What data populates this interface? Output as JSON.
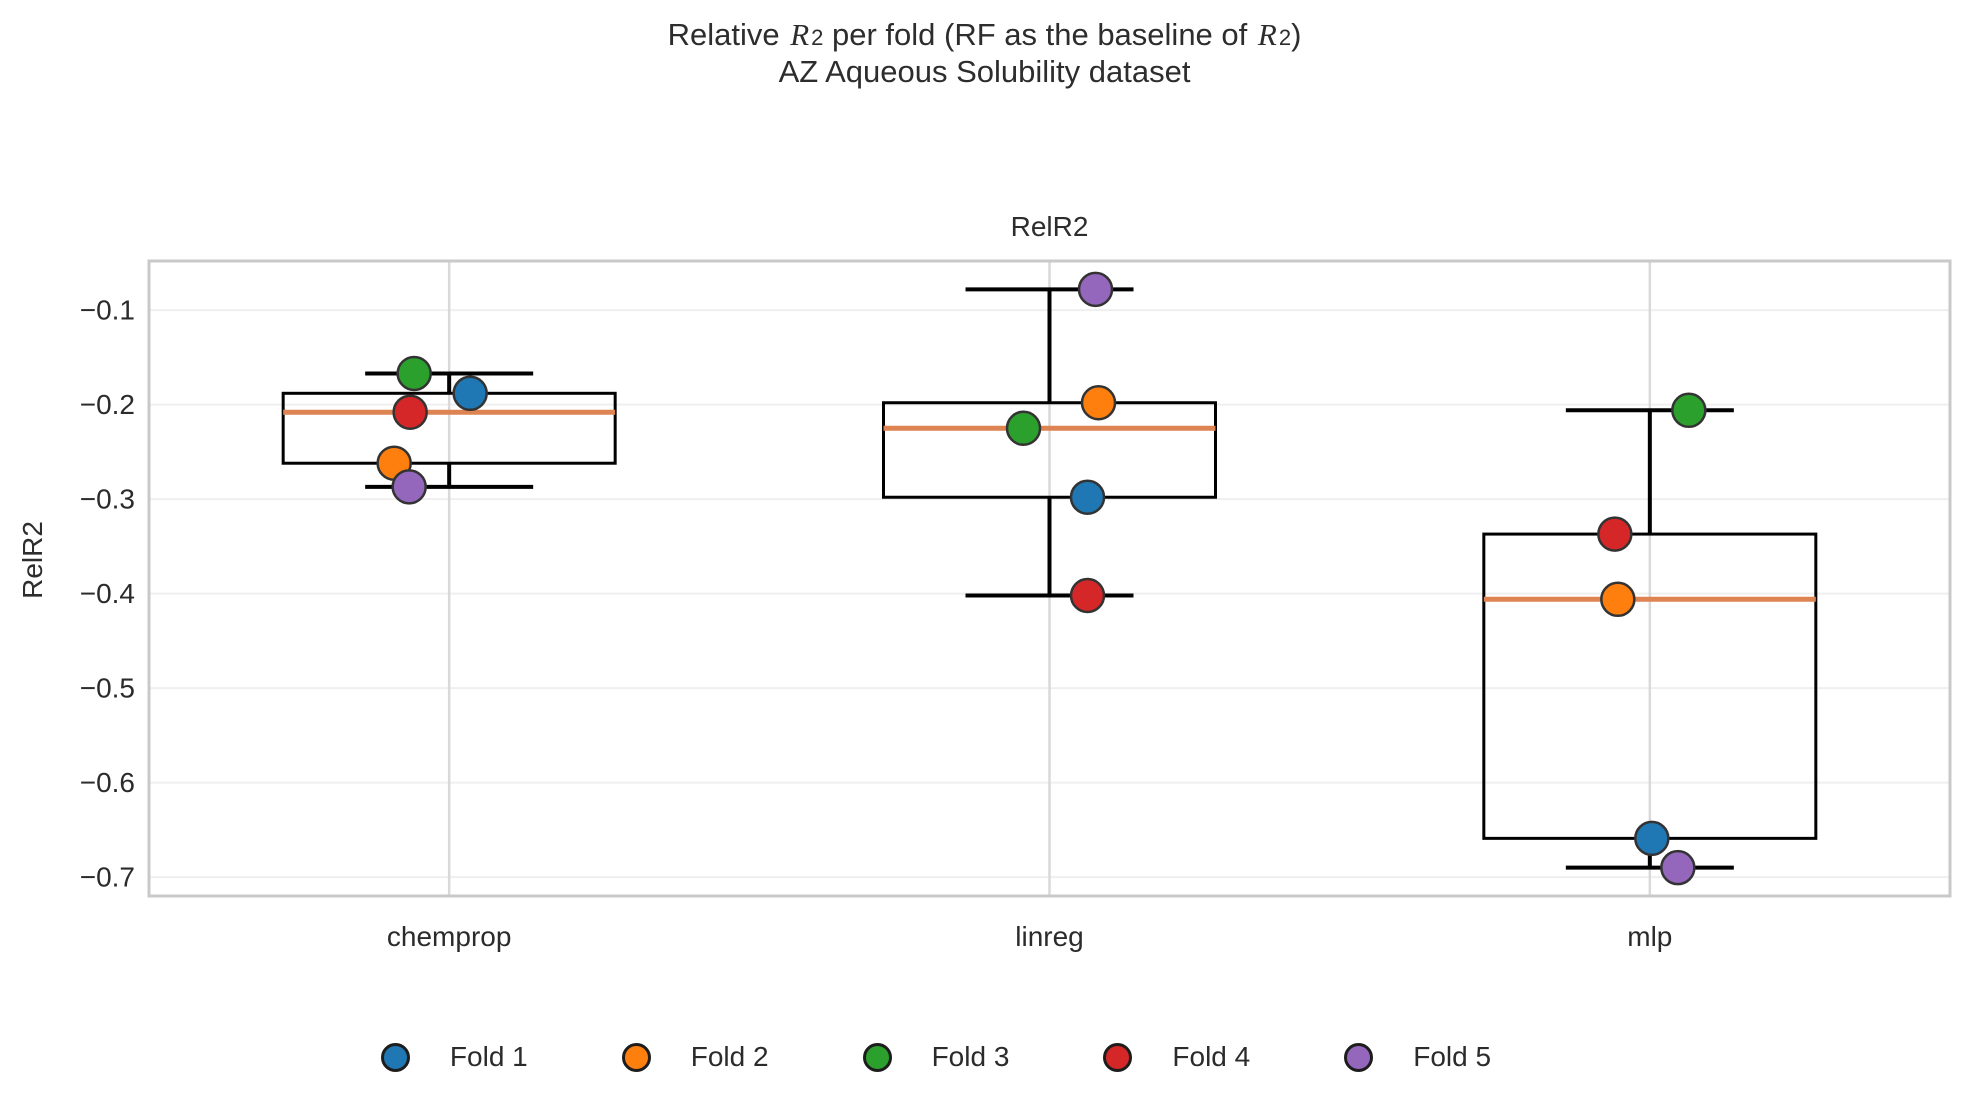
{
  "figure": {
    "title_parts": {
      "p1": "Relative ",
      "r1": "R",
      "s1": "2",
      "p2": " per fold (RF as the baseline of ",
      "r2": "R",
      "s2": "2",
      "p3": ")"
    },
    "subtitle": "AZ Aqueous Solubility dataset"
  },
  "panel": {
    "title": "RelR2"
  },
  "y_axis": {
    "label": "RelR2"
  },
  "legend": {
    "items": [
      {
        "label": "Fold 1",
        "color": "#1f77b4"
      },
      {
        "label": "Fold 2",
        "color": "#ff7f0e"
      },
      {
        "label": "Fold 3",
        "color": "#2ca02c"
      },
      {
        "label": "Fold 4",
        "color": "#d62728"
      },
      {
        "label": "Fold 5",
        "color": "#9467bd"
      }
    ]
  },
  "chart_data": {
    "type": "box",
    "title": "RelR2",
    "xlabel": "",
    "ylabel": "RelR2",
    "ylim": [
      -0.72,
      -0.048
    ],
    "yticks": [
      -0.1,
      -0.2,
      -0.3,
      -0.4,
      -0.5,
      -0.6,
      -0.7
    ],
    "grid": true,
    "legend_position": "bottom",
    "categories": [
      "chemprop",
      "linreg",
      "mlp"
    ],
    "folds": [
      "Fold 1",
      "Fold 2",
      "Fold 3",
      "Fold 4",
      "Fold 5"
    ],
    "fold_colors": {
      "Fold 1": "#1f77b4",
      "Fold 2": "#ff7f0e",
      "Fold 3": "#2ca02c",
      "Fold 4": "#d62728",
      "Fold 5": "#9467bd"
    },
    "box_edge_color": "#000000",
    "median_color": "#dd8452",
    "series": [
      {
        "model": "chemprop",
        "box": {
          "whisker_low": -0.287,
          "q1": -0.262,
          "median": -0.208,
          "q3": -0.188,
          "whisker_high": -0.167
        },
        "points": [
          {
            "fold": "Fold 1",
            "value": -0.188,
            "dx": 21
          },
          {
            "fold": "Fold 2",
            "value": -0.262,
            "dx": -55
          },
          {
            "fold": "Fold 3",
            "value": -0.167,
            "dx": -35
          },
          {
            "fold": "Fold 4",
            "value": -0.208,
            "dx": -39
          },
          {
            "fold": "Fold 5",
            "value": -0.287,
            "dx": -40
          }
        ]
      },
      {
        "model": "linreg",
        "box": {
          "whisker_low": -0.402,
          "q1": -0.298,
          "median": -0.225,
          "q3": -0.198,
          "whisker_high": -0.078
        },
        "points": [
          {
            "fold": "Fold 1",
            "value": -0.298,
            "dx": 38
          },
          {
            "fold": "Fold 2",
            "value": -0.198,
            "dx": 49
          },
          {
            "fold": "Fold 3",
            "value": -0.225,
            "dx": -26
          },
          {
            "fold": "Fold 4",
            "value": -0.402,
            "dx": 38
          },
          {
            "fold": "Fold 5",
            "value": -0.078,
            "dx": 46
          }
        ]
      },
      {
        "model": "mlp",
        "box": {
          "whisker_low": -0.69,
          "q1": -0.659,
          "median": -0.406,
          "q3": -0.337,
          "whisker_high": -0.206
        },
        "points": [
          {
            "fold": "Fold 1",
            "value": -0.659,
            "dx": 2
          },
          {
            "fold": "Fold 2",
            "value": -0.406,
            "dx": -32
          },
          {
            "fold": "Fold 3",
            "value": -0.206,
            "dx": 39
          },
          {
            "fold": "Fold 4",
            "value": -0.337,
            "dx": -35
          },
          {
            "fold": "Fold 5",
            "value": -0.69,
            "dx": 28
          }
        ]
      }
    ]
  }
}
